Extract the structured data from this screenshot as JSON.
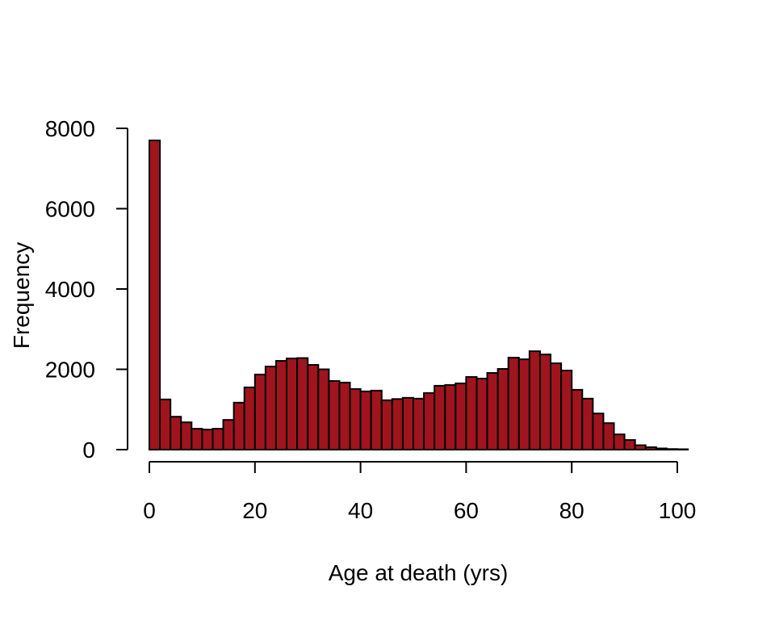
{
  "chart_data": {
    "type": "bar",
    "subtype": "histogram",
    "title": "",
    "xlabel": "Age at death (yrs)",
    "ylabel": "Frequency",
    "bin_width": 2,
    "bin_start": 0,
    "values": [
      7700,
      1250,
      820,
      680,
      520,
      500,
      520,
      740,
      1170,
      1550,
      1870,
      2070,
      2210,
      2270,
      2280,
      2110,
      2000,
      1710,
      1670,
      1510,
      1450,
      1470,
      1230,
      1260,
      1290,
      1270,
      1410,
      1590,
      1610,
      1650,
      1810,
      1770,
      1910,
      2010,
      2290,
      2250,
      2450,
      2370,
      2150,
      1970,
      1490,
      1270,
      900,
      660,
      380,
      240,
      110,
      60,
      30,
      15,
      10
    ],
    "xlim": [
      0,
      100
    ],
    "ylim": [
      0,
      8000
    ],
    "xticks": [
      "0",
      "20",
      "40",
      "60",
      "80",
      "100"
    ],
    "xtick_values": [
      0,
      20,
      40,
      60,
      80,
      100
    ],
    "yticks": [
      "0",
      "2000",
      "4000",
      "6000",
      "8000"
    ],
    "ytick_values": [
      0,
      2000,
      4000,
      6000,
      8000
    ],
    "bar_color": "#a0141e",
    "grid": false
  }
}
